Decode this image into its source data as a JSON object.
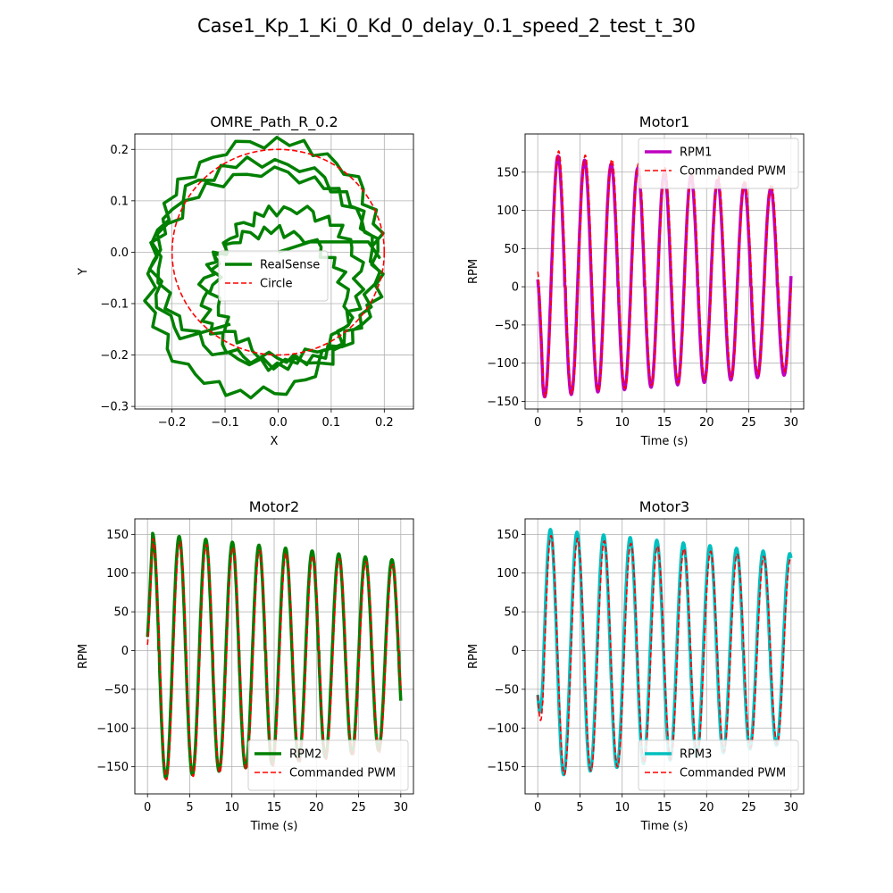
{
  "figure": {
    "title": "Case1_Kp_1_Ki_0_Kd_0_delay_0.1_speed_2_test_t_30",
    "background": "#ffffff"
  },
  "chart_data": [
    {
      "id": "path",
      "type": "line",
      "title": "OMRE_Path_R_0.2",
      "xlabel": "X",
      "ylabel": "Y",
      "xlim": [
        -0.27,
        0.255
      ],
      "ylim": [
        -0.305,
        0.23
      ],
      "xticks": [
        -0.2,
        -0.1,
        0.0,
        0.1,
        0.2
      ],
      "xticklabels": [
        "−0.2",
        "−0.1",
        "0.0",
        "0.1",
        "0.2"
      ],
      "yticks": [
        -0.3,
        -0.2,
        -0.1,
        0.0,
        0.1,
        0.2
      ],
      "yticklabels": [
        "−0.3",
        "−0.2",
        "−0.1",
        "0.0",
        "0.1",
        "0.2"
      ],
      "grid": true,
      "legend_position": "center",
      "series": [
        {
          "name": "RealSense",
          "color": "#008000",
          "style": "solid",
          "kind": "trajectory"
        },
        {
          "name": "Circle",
          "color": "#ff0000",
          "style": "dashed",
          "kind": "circle",
          "radius": 0.2
        }
      ]
    },
    {
      "id": "motor1",
      "type": "line",
      "title": "Motor1",
      "xlabel": "Time (s)",
      "ylabel": "RPM",
      "xlim": [
        -1.5,
        31.5
      ],
      "ylim": [
        -160,
        200
      ],
      "xticks": [
        0,
        5,
        10,
        15,
        20,
        25,
        30
      ],
      "xticklabels": [
        "0",
        "5",
        "10",
        "15",
        "20",
        "25",
        "30"
      ],
      "yticks": [
        -150,
        -100,
        -50,
        0,
        50,
        100,
        150
      ],
      "yticklabels": [
        "−150",
        "−100",
        "−50",
        "0",
        "50",
        "100",
        "150"
      ],
      "grid": true,
      "legend_position": "top-right",
      "period": 3.15,
      "phase": 2.4,
      "series": [
        {
          "name": "RPM1",
          "color": "#bf00bf",
          "style": "solid",
          "peak_start": 175,
          "peak_end": 125,
          "trough_start": -145,
          "trough_end": -115
        },
        {
          "name": "Commanded PWM",
          "color": "#ff0000",
          "style": "dashed",
          "peak_start": 182,
          "peak_end": 130,
          "trough_start": -145,
          "trough_end": -110
        }
      ]
    },
    {
      "id": "motor2",
      "type": "line",
      "title": "Motor2",
      "xlabel": "Time (s)",
      "ylabel": "RPM",
      "xlim": [
        -1.5,
        31.5
      ],
      "ylim": [
        -185,
        170
      ],
      "xticks": [
        0,
        5,
        10,
        15,
        20,
        25,
        30
      ],
      "xticklabels": [
        "0",
        "5",
        "10",
        "15",
        "20",
        "25",
        "30"
      ],
      "yticks": [
        -150,
        -100,
        -50,
        0,
        50,
        100,
        150
      ],
      "yticklabels": [
        "−150",
        "−100",
        "−50",
        "0",
        "50",
        "100",
        "150"
      ],
      "grid": true,
      "legend_position": "bottom-right",
      "period": 3.15,
      "phase": 0.6,
      "series": [
        {
          "name": "RPM2",
          "color": "#008000",
          "style": "solid",
          "peak_start": 152,
          "peak_end": 116,
          "trough_start": -168,
          "trough_end": -125
        },
        {
          "name": "Commanded PWM",
          "color": "#ff0000",
          "style": "dashed",
          "peak_start": 145,
          "peak_end": 110,
          "trough_start": -170,
          "trough_end": -128
        }
      ]
    },
    {
      "id": "motor3",
      "type": "line",
      "title": "Motor3",
      "xlabel": "Time (s)",
      "ylabel": "RPM",
      "xlim": [
        -1.5,
        31.5
      ],
      "ylim": [
        -185,
        170
      ],
      "xticks": [
        0,
        5,
        10,
        15,
        20,
        25,
        30
      ],
      "xticklabels": [
        "0",
        "5",
        "10",
        "15",
        "20",
        "25",
        "30"
      ],
      "yticks": [
        -150,
        -100,
        -50,
        0,
        50,
        100,
        150
      ],
      "yticklabels": [
        "−150",
        "−100",
        "−50",
        "0",
        "50",
        "100",
        "150"
      ],
      "grid": true,
      "legend_position": "bottom-right",
      "period": 3.15,
      "phase": 1.5,
      "series": [
        {
          "name": "RPM3",
          "color": "#00bfbf",
          "style": "solid",
          "peak_start": 158,
          "peak_end": 125,
          "trough_start": -165,
          "trough_end": -120
        },
        {
          "name": "Commanded PWM",
          "color": "#ff0000",
          "style": "dashed",
          "peak_start": 150,
          "peak_end": 118,
          "trough_start": -165,
          "trough_end": -118
        }
      ]
    }
  ]
}
